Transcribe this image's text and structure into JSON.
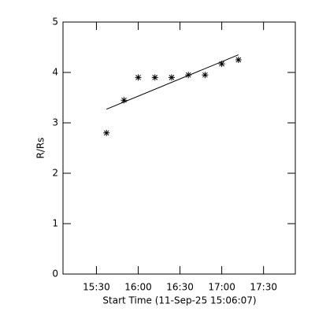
{
  "chart_data": {
    "type": "scatter",
    "xlabel": "Start Time (11-Sep-25 15:06:07)",
    "ylabel": "R/Rs",
    "x": [
      15.62,
      15.83,
      16.0,
      16.2,
      16.4,
      16.6,
      16.8,
      17.0,
      17.2
    ],
    "values": [
      2.8,
      3.45,
      3.9,
      3.9,
      3.9,
      3.95,
      3.95,
      4.17,
      4.25
    ],
    "fit": {
      "x": [
        15.62,
        17.2
      ],
      "values": [
        3.27,
        4.35
      ]
    },
    "color": "#000000",
    "xlim": [
      15.1,
      17.88
    ],
    "xticks": [
      {
        "value": 15.5,
        "label": "15:30"
      },
      {
        "value": 16.0,
        "label": "16:00"
      },
      {
        "value": 16.5,
        "label": "16:30"
      },
      {
        "value": 17.0,
        "label": "17:00"
      },
      {
        "value": 17.5,
        "label": "17:30"
      }
    ],
    "ylim": [
      0,
      5
    ],
    "yticks": [
      0,
      1,
      2,
      3,
      4,
      5
    ]
  }
}
